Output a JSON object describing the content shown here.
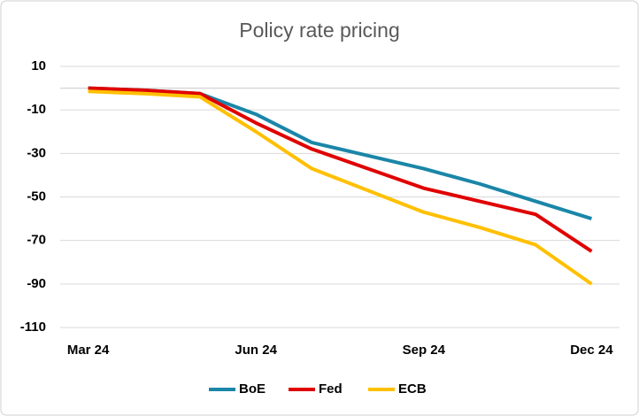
{
  "chart_data": {
    "type": "line",
    "title": "Policy rate pricing",
    "categories": [
      "Mar 24",
      null,
      null,
      "Jun 24",
      null,
      null,
      "Sep 24",
      null,
      null,
      "Dec 24"
    ],
    "series": [
      {
        "name": "BoE",
        "color": "#1a86a8",
        "values": [
          0,
          -1,
          -2.5,
          -12,
          -25,
          -31,
          -37,
          -44,
          -52,
          -60
        ]
      },
      {
        "name": "Fed",
        "color": "#e00000",
        "values": [
          0,
          -1,
          -2.5,
          -16,
          -28,
          -37,
          -46,
          -52,
          -58,
          -75
        ]
      },
      {
        "name": "ECB",
        "color": "#ffc000",
        "values": [
          -1.5,
          -2.5,
          -4,
          -20,
          -37,
          -47,
          -57,
          -64,
          -72,
          -90
        ]
      }
    ],
    "ylim": [
      -110,
      10
    ],
    "yticks": [
      10,
      -10,
      -30,
      -50,
      -70,
      -90,
      -110
    ],
    "grid": true,
    "legend": "bottom"
  }
}
